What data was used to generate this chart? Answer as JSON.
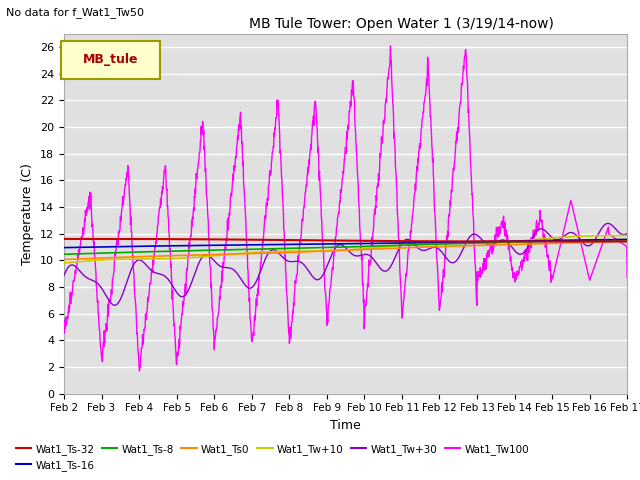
{
  "title": "MB Tule Tower: Open Water 1 (3/19/14-now)",
  "no_data_text": "No data for f_Wat1_Tw50",
  "xlabel": "Time",
  "ylabel": "Temperature (C)",
  "ylim": [
    0,
    27
  ],
  "xlim": [
    0,
    15
  ],
  "x_tick_labels": [
    "Feb 2",
    "Feb 3",
    "Feb 4",
    "Feb 5",
    "Feb 6",
    "Feb 7",
    "Feb 8",
    "Feb 9",
    "Feb 10",
    "Feb 11",
    "Feb 12",
    "Feb 13",
    "Feb 14",
    "Feb 15",
    "Feb 16",
    "Feb 17"
  ],
  "bg_color": "#e0e0e0",
  "fig_bg": "#ffffff",
  "legend_box_label": "MB_tule",
  "legend_box_facecolor": "#ffffcc",
  "legend_box_edgecolor": "#999900",
  "series_colors": {
    "Wat1_Ts-32": "#cc0000",
    "Wat1_Ts-16": "#0000cc",
    "Wat1_Ts-8": "#00aa00",
    "Wat1_Ts0": "#ff8800",
    "Wat1_Tw+10": "#cccc00",
    "Wat1_Tw+30": "#8800cc",
    "Wat1_Tw100": "#ff00ff"
  }
}
